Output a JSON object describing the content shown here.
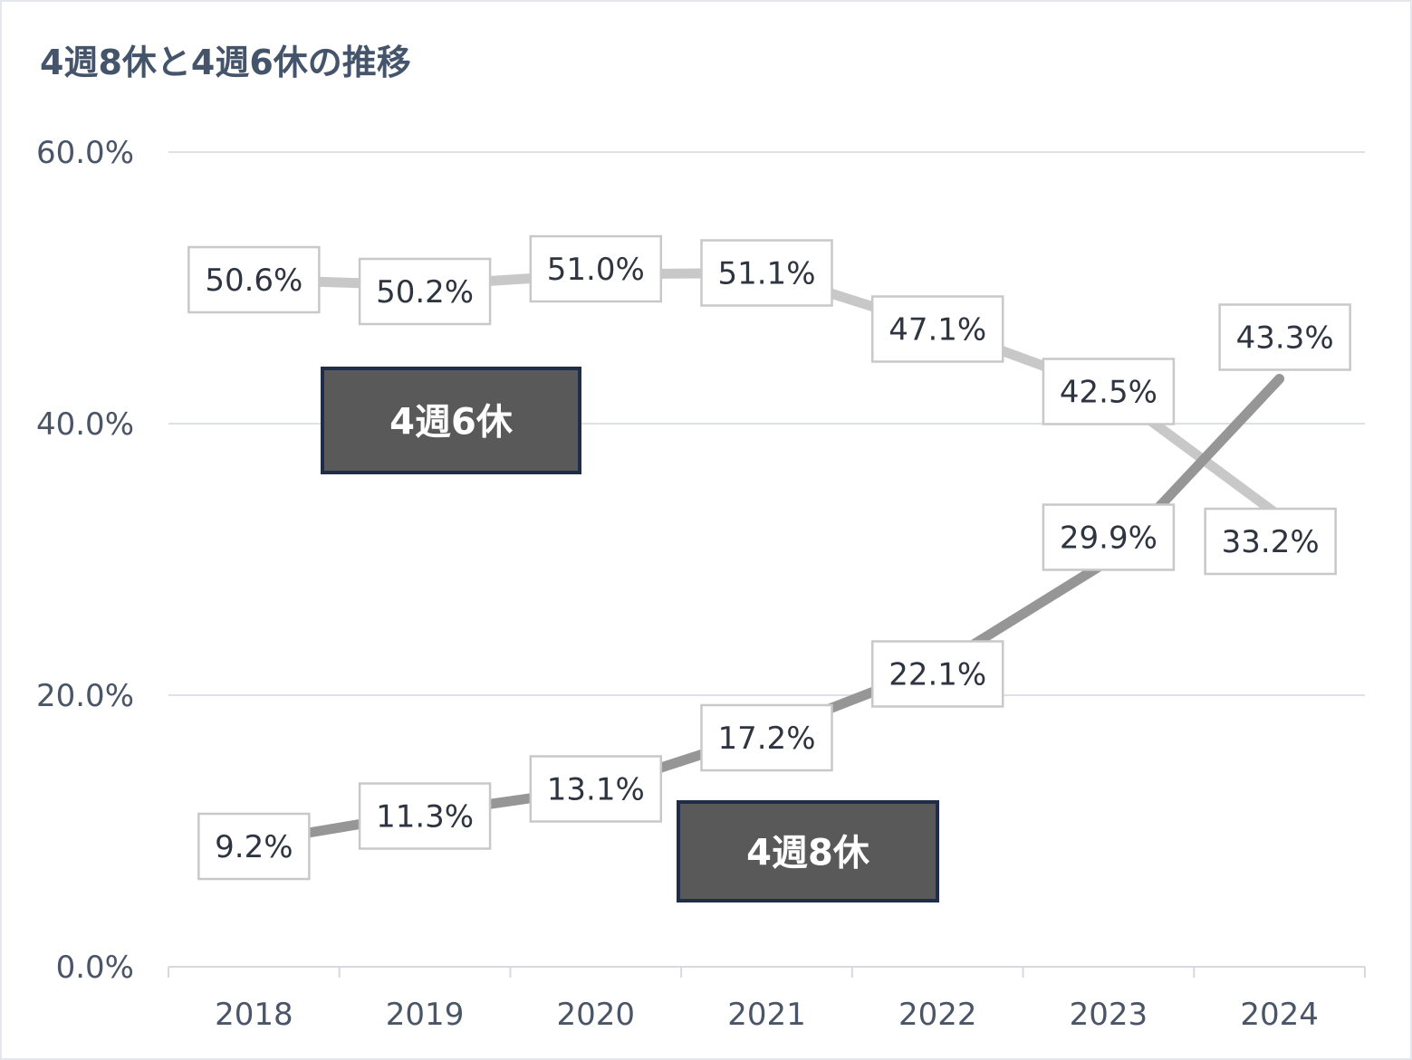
{
  "title": "4週8休と4週6休の推移",
  "chart_data": {
    "type": "line",
    "title": "4週8休と4週6休の推移",
    "xlabel": "",
    "ylabel": "",
    "categories": [
      "2018",
      "2019",
      "2020",
      "2021",
      "2022",
      "2023",
      "2024"
    ],
    "y_ticks": [
      "0.0%",
      "20.0%",
      "40.0%",
      "60.0%"
    ],
    "ylim": [
      0,
      60
    ],
    "grid": true,
    "legend": "inline labels",
    "series": [
      {
        "name": "4週6休",
        "color": "#c8c8c8",
        "values": [
          50.6,
          50.2,
          51.0,
          51.1,
          47.1,
          42.5,
          33.2
        ],
        "labels": [
          "50.6%",
          "50.2%",
          "51.0%",
          "51.1%",
          "47.1%",
          "42.5%",
          "33.2%"
        ]
      },
      {
        "name": "4週8休",
        "color": "#969696",
        "values": [
          9.2,
          11.3,
          13.1,
          17.2,
          22.1,
          29.9,
          43.3
        ],
        "labels": [
          "9.2%",
          "11.3%",
          "13.1%",
          "17.2%",
          "22.1%",
          "29.9%",
          "43.3%"
        ]
      }
    ]
  }
}
